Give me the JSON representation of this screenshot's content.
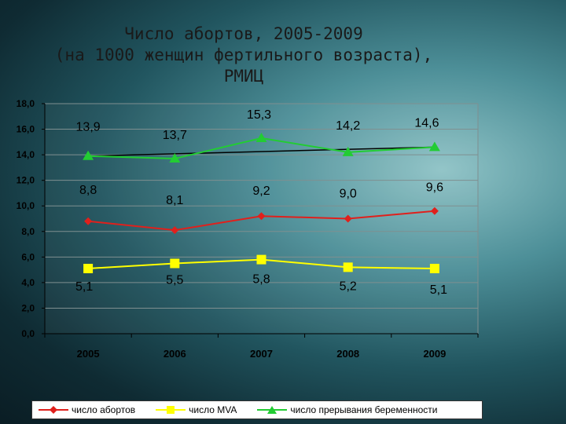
{
  "title": {
    "line1": "Число абортов, 2005-2009",
    "line2": "(на 1000 женщин фертильного возраста),",
    "line3": "РМИЦ"
  },
  "colors": {
    "abortions": "#e0201c",
    "mva": "#ffff00",
    "terminations": "#22cc33",
    "trend": "#000000"
  },
  "chart_data": {
    "type": "line",
    "categories": [
      "2005",
      "2006",
      "2007",
      "2008",
      "2009"
    ],
    "ylim": [
      0,
      18
    ],
    "yticks": [
      "0,0",
      "2,0",
      "4,0",
      "6,0",
      "8,0",
      "10,0",
      "12,0",
      "14,0",
      "16,0",
      "18,0"
    ],
    "grid": true,
    "legend_position": "bottom",
    "series": [
      {
        "name": "число абортов",
        "values": [
          8.8,
          8.1,
          9.2,
          9.0,
          9.6
        ],
        "labels": [
          "8,8",
          "8,1",
          "9,2",
          "9,0",
          "9,6"
        ],
        "marker": "diamond"
      },
      {
        "name": "число MVA",
        "values": [
          5.1,
          5.5,
          5.8,
          5.2,
          5.1
        ],
        "labels": [
          "5,1",
          "5,5",
          "5,8",
          "5,2",
          "5,1"
        ],
        "marker": "square"
      },
      {
        "name": "число прерывания беременности",
        "values": [
          13.9,
          13.7,
          15.3,
          14.2,
          14.6
        ],
        "labels": [
          "13,9",
          "13,7",
          "15,3",
          "14,2",
          "14,6"
        ],
        "marker": "triangle"
      }
    ],
    "trendline": {
      "series": "число прерывания беременности",
      "values": [
        13.9,
        14.6
      ]
    }
  }
}
